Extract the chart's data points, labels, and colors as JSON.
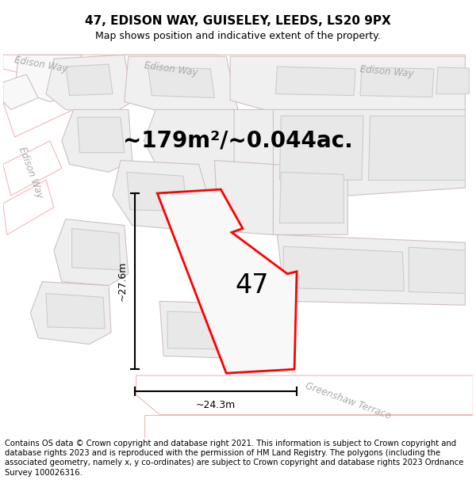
{
  "title": "47, EDISON WAY, GUISELEY, LEEDS, LS20 9PX",
  "subtitle": "Map shows position and indicative extent of the property.",
  "footer": "Contains OS data © Crown copyright and database right 2021. This information is subject to Crown copyright and database rights 2023 and is reproduced with the permission of HM Land Registry. The polygons (including the associated geometry, namely x, y co-ordinates) are subject to Crown copyright and database rights 2023 Ordnance Survey 100026316.",
  "area_label": "~179m²/~0.044ac.",
  "number_label": "47",
  "dim_vertical": "~27.6m",
  "dim_horizontal": "~24.3m",
  "map_bg": "#ffffff",
  "road_line_color": "#f0b8b8",
  "building_fill": "#e8e8e8",
  "building_edge": "#cccccc",
  "plot_fill": "#f0f0f0",
  "plot_edge": "#d0c0c0",
  "property_fill": "#f8f8f8",
  "property_edge": "#ff0000",
  "street_label_color": "#aaaaaa",
  "title_fontsize": 11,
  "subtitle_fontsize": 9,
  "footer_fontsize": 7.2,
  "area_fontsize": 20,
  "number_fontsize": 24
}
